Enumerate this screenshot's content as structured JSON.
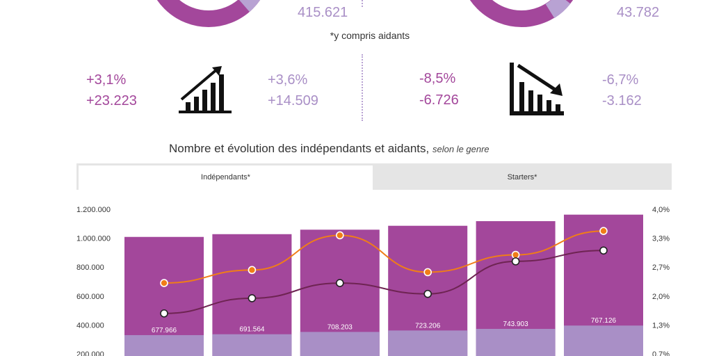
{
  "top": {
    "left_total": "415.621",
    "right_total": "43.782",
    "footnote": "*y compris aidants"
  },
  "stats": {
    "left_col1": [
      "+3,1%",
      "+23.223"
    ],
    "left_col2": [
      "+3,6%",
      "+14.509"
    ],
    "right_col1": [
      "-8,5%",
      "-6.726"
    ],
    "right_col2": [
      "-6,7%",
      "-3.162"
    ]
  },
  "icons": {
    "growth": "growth-chart-icon",
    "decline": "decline-chart-icon"
  },
  "colors": {
    "magenta": "#a3479b",
    "lavender": "#a98fc6",
    "orange": "#f07d18",
    "dark_line": "#6e2452"
  },
  "chart": {
    "title": "Nombre et évolution des indépendants et aidants,",
    "subtitle": "selon le genre",
    "tabs": [
      "Indépendants*",
      "Starters*"
    ]
  },
  "chart_data": {
    "type": "bar",
    "y_ticks": [
      "1.200.000",
      "1.000.000",
      "800.000",
      "600.000",
      "400.000",
      "200.000"
    ],
    "y2_ticks": [
      "4,0%",
      "3,3%",
      "2,7%",
      "2,0%",
      "1,3%",
      "0,7%"
    ],
    "ylim": [
      0,
      1200000
    ],
    "y2lim": [
      0,
      4.0
    ],
    "series": [
      {
        "type": "bar",
        "values": [
          1009000,
          1028000,
          1059000,
          1086000,
          1118000,
          1163000
        ]
      },
      {
        "type": "bar",
        "values": [
          330000,
          336000,
          352000,
          362000,
          373000,
          396000
        ]
      },
      {
        "type": "line",
        "values": [
          2.3,
          2.6,
          3.4,
          2.55,
          2.95,
          3.5
        ]
      },
      {
        "type": "line",
        "values": [
          1.6,
          1.95,
          2.3,
          2.05,
          2.8,
          3.05
        ]
      }
    ],
    "bar_labels": [
      "677.966",
      "691.564",
      "708.203",
      "723.206",
      "743.903",
      "767.126"
    ]
  }
}
